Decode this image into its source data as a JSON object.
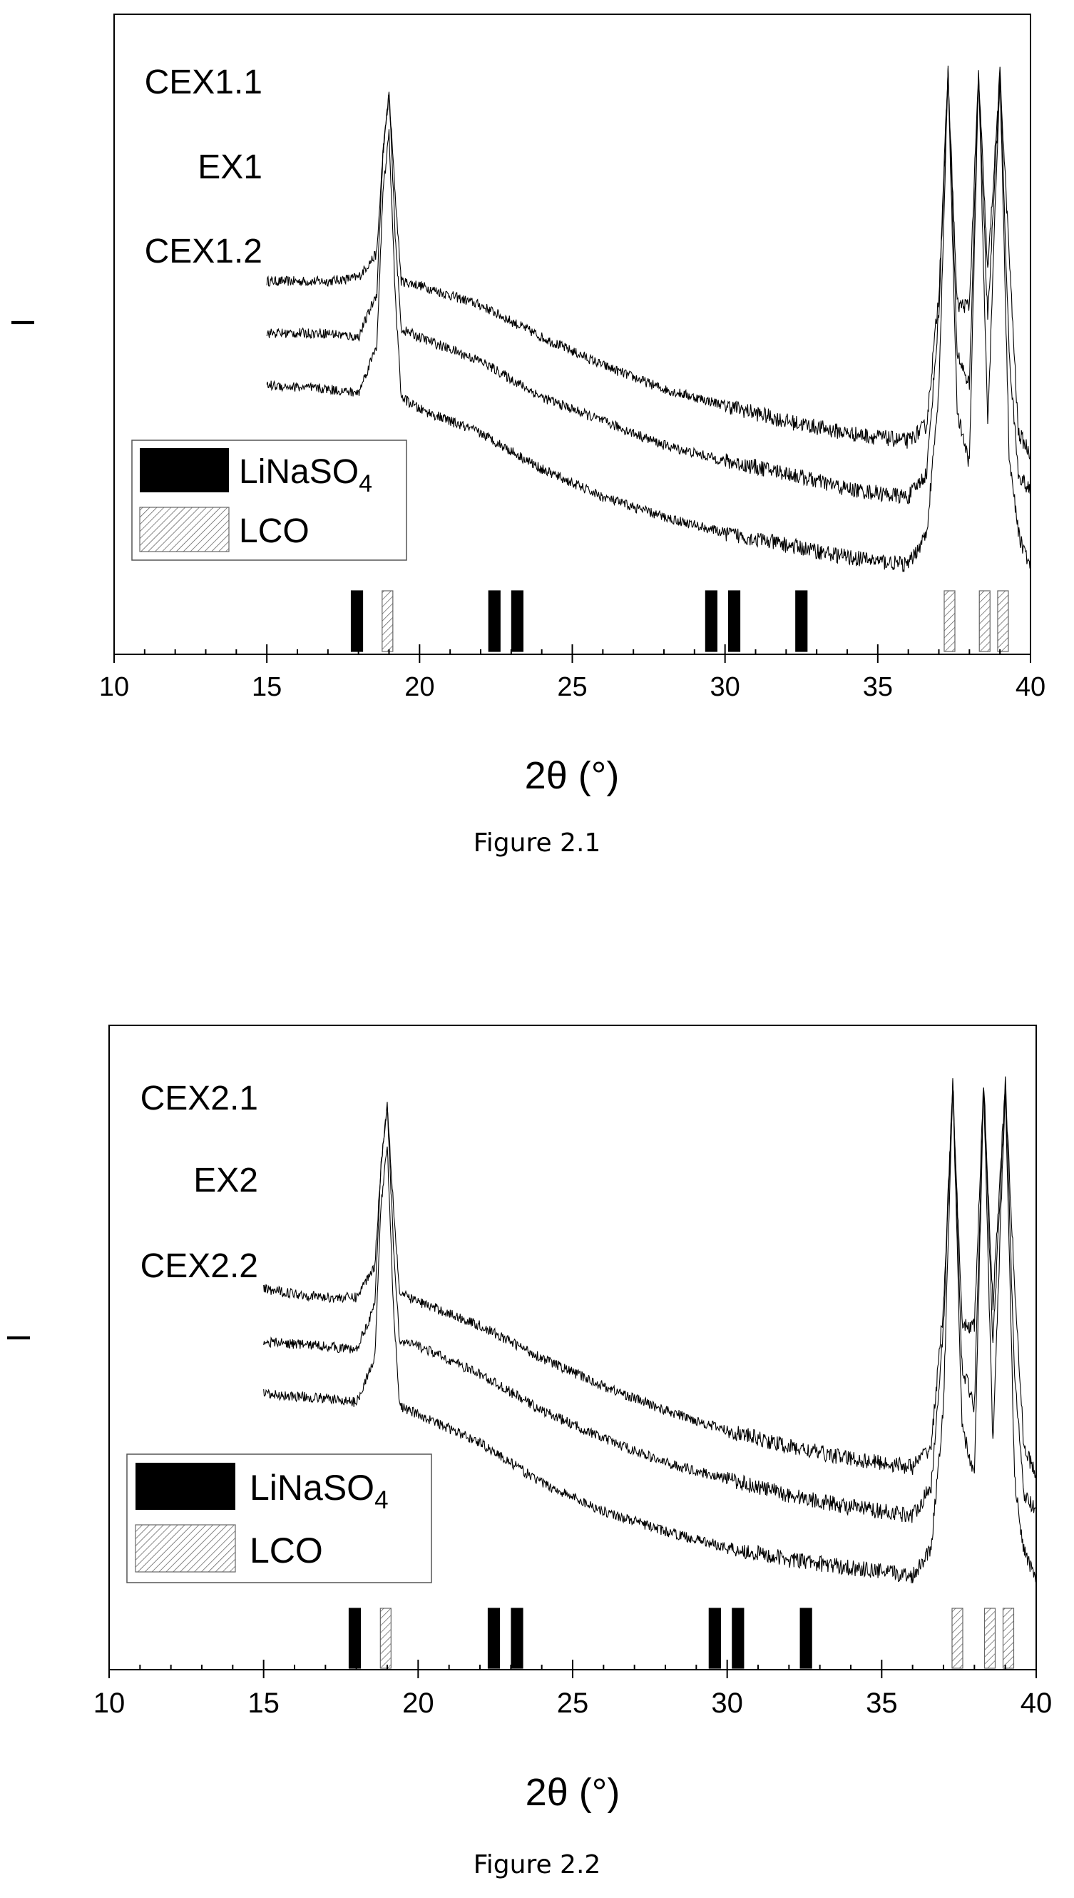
{
  "figures": [
    {
      "caption": "Figure 2.1",
      "y_axis_label": "I",
      "legend": {
        "items": [
          {
            "sub_base": "LiNaSO",
            "sub_digit": "4",
            "pattern": "solid"
          },
          {
            "sub_base": "LCO",
            "sub_digit": "",
            "pattern": "hatched"
          }
        ]
      }
    },
    {
      "caption": "Figure 2.2",
      "y_axis_label": "I",
      "legend": {
        "items": [
          {
            "sub_base": "LiNaSO",
            "sub_digit": "4",
            "pattern": "solid"
          },
          {
            "sub_base": "LCO",
            "sub_digit": "",
            "pattern": "hatched"
          }
        ]
      }
    }
  ],
  "chart_data": [
    {
      "type": "line",
      "xlabel": "2θ (°)",
      "ylabel": "I",
      "xlim": [
        10,
        40
      ],
      "x_ticks": [
        10,
        15,
        20,
        25,
        30,
        35,
        40
      ],
      "x_tick_labels": [
        "10",
        "15",
        "20",
        "25",
        "30",
        "35",
        "40"
      ],
      "y_ticks": [],
      "grid": false,
      "legend_position": "bottom-left",
      "series": [
        {
          "name": "CEX1.1",
          "x": [
            15,
            17,
            18,
            18.6,
            18.8,
            19,
            19.2,
            19.4,
            20,
            22,
            24,
            26,
            28,
            30,
            32,
            34,
            35,
            36,
            36.6,
            37,
            37.3,
            37.6,
            38,
            38.3,
            38.6,
            39,
            39.3,
            39.6,
            40
          ],
          "y": [
            0.88,
            0.88,
            0.89,
            0.95,
            1.2,
            1.35,
            1.1,
            0.88,
            0.87,
            0.82,
            0.74,
            0.67,
            0.61,
            0.57,
            0.53,
            0.5,
            0.49,
            0.48,
            0.52,
            0.85,
            1.4,
            0.82,
            0.82,
            1.4,
            0.9,
            1.4,
            0.95,
            0.5,
            0.45
          ]
        },
        {
          "name": "EX1",
          "x": [
            15,
            17,
            18,
            18.6,
            18.8,
            19,
            19.2,
            19.4,
            20,
            22,
            24,
            26,
            28,
            30,
            32,
            34,
            35,
            36,
            36.6,
            37,
            37.3,
            37.6,
            38,
            38.3,
            38.6,
            39,
            39.3,
            39.6,
            40
          ],
          "y": [
            0.75,
            0.75,
            0.74,
            0.85,
            1.2,
            1.35,
            1.0,
            0.76,
            0.74,
            0.68,
            0.59,
            0.53,
            0.47,
            0.43,
            0.4,
            0.36,
            0.35,
            0.34,
            0.4,
            0.8,
            1.4,
            0.7,
            0.62,
            1.4,
            0.78,
            1.4,
            0.7,
            0.4,
            0.35
          ]
        },
        {
          "name": "CEX1.2",
          "x": [
            15,
            17,
            18,
            18.6,
            18.8,
            19,
            19.2,
            19.4,
            20,
            22,
            24,
            26,
            28,
            30,
            32,
            34,
            35,
            36,
            36.6,
            37,
            37.3,
            37.6,
            38,
            38.3,
            38.6,
            39,
            39.3,
            39.6,
            40
          ],
          "y": [
            0.62,
            0.61,
            0.6,
            0.72,
            1.1,
            1.25,
            0.85,
            0.59,
            0.56,
            0.5,
            0.41,
            0.34,
            0.29,
            0.25,
            0.22,
            0.19,
            0.18,
            0.17,
            0.25,
            0.6,
            1.4,
            0.55,
            0.42,
            1.4,
            0.52,
            1.4,
            0.45,
            0.25,
            0.16
          ]
        }
      ],
      "reference_lines": [
        {
          "name": "LiNaSO4",
          "pattern": "solid",
          "positions": [
            17.95,
            22.45,
            23.2,
            29.55,
            30.3,
            32.5
          ]
        },
        {
          "name": "LCO",
          "pattern": "hatched",
          "positions": [
            18.95,
            37.35,
            38.5,
            39.1
          ]
        }
      ]
    },
    {
      "type": "line",
      "xlabel": "2θ (°)",
      "ylabel": "I",
      "xlim": [
        10,
        40
      ],
      "x_ticks": [
        10,
        15,
        20,
        25,
        30,
        35,
        40
      ],
      "x_tick_labels": [
        "10",
        "15",
        "20",
        "25",
        "30",
        "35",
        "40"
      ],
      "y_ticks": [],
      "grid": false,
      "legend_position": "bottom-left",
      "series": [
        {
          "name": "CEX2.1",
          "x": [
            15,
            17,
            18,
            18.6,
            18.8,
            19,
            19.2,
            19.4,
            20,
            22,
            24,
            26,
            28,
            30,
            32,
            34,
            35,
            36,
            36.6,
            37,
            37.3,
            37.6,
            38,
            38.3,
            38.6,
            39,
            39.3,
            39.6,
            40
          ],
          "y": [
            0.89,
            0.87,
            0.87,
            0.95,
            1.2,
            1.35,
            1.1,
            0.88,
            0.86,
            0.8,
            0.72,
            0.65,
            0.59,
            0.54,
            0.5,
            0.47,
            0.46,
            0.45,
            0.5,
            0.85,
            1.4,
            0.8,
            0.8,
            1.4,
            0.85,
            1.4,
            0.9,
            0.5,
            0.43
          ]
        },
        {
          "name": "EX2",
          "x": [
            15,
            17,
            18,
            18.6,
            18.8,
            19,
            19.2,
            19.4,
            20,
            22,
            24,
            26,
            28,
            30,
            32,
            34,
            35,
            36,
            36.6,
            37,
            37.3,
            37.6,
            38,
            38.3,
            38.6,
            39,
            39.3,
            39.6,
            40
          ],
          "y": [
            0.76,
            0.75,
            0.74,
            0.85,
            1.2,
            1.35,
            1.0,
            0.76,
            0.75,
            0.68,
            0.59,
            0.52,
            0.46,
            0.42,
            0.38,
            0.35,
            0.34,
            0.33,
            0.4,
            0.8,
            1.4,
            0.7,
            0.6,
            1.4,
            0.75,
            1.4,
            0.68,
            0.38,
            0.34
          ]
        },
        {
          "name": "CEX2.2",
          "x": [
            15,
            17,
            18,
            18.6,
            18.8,
            19,
            19.2,
            19.4,
            20,
            22,
            24,
            26,
            28,
            30,
            32,
            34,
            35,
            36,
            36.6,
            37,
            37.3,
            37.6,
            38,
            38.3,
            38.6,
            39,
            39.3,
            39.6,
            40
          ],
          "y": [
            0.63,
            0.62,
            0.61,
            0.72,
            1.1,
            1.25,
            0.85,
            0.6,
            0.58,
            0.51,
            0.41,
            0.34,
            0.29,
            0.25,
            0.22,
            0.2,
            0.19,
            0.18,
            0.25,
            0.6,
            1.4,
            0.55,
            0.42,
            1.4,
            0.5,
            1.4,
            0.42,
            0.24,
            0.17
          ]
        }
      ],
      "reference_lines": [
        {
          "name": "LiNaSO4",
          "pattern": "solid",
          "positions": [
            17.95,
            22.45,
            23.2,
            29.6,
            30.35,
            32.55
          ]
        },
        {
          "name": "LCO",
          "pattern": "hatched",
          "positions": [
            18.95,
            37.45,
            38.5,
            39.1
          ]
        }
      ]
    }
  ]
}
